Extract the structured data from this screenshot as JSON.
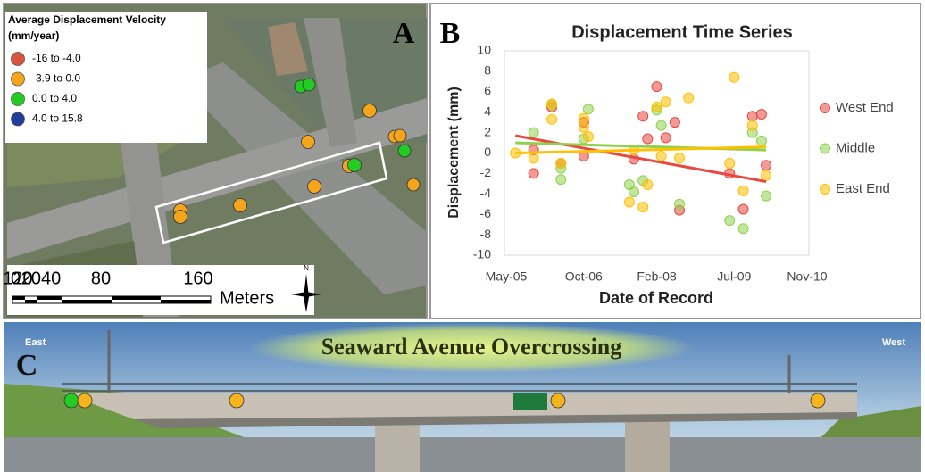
{
  "panel_a": {
    "label": "A",
    "legend": {
      "title_lines": [
        "Average Displacement Velocity",
        "(mm/year)"
      ],
      "items": [
        {
          "label": "-16  to -4.0",
          "color": "#d9553f"
        },
        {
          "label": "-3.9  to  0.0",
          "color": "#f5a51c"
        },
        {
          "label": "0.0  to  4.0",
          "color": "#22cc22"
        },
        {
          "label": "4.0  to  15.8",
          "color": "#1f3f9a"
        }
      ]
    },
    "scale_bar": {
      "labels": [
        "0",
        "2040",
        "80",
        "120",
        "160"
      ],
      "unit": "Meters",
      "north": "N"
    }
  },
  "chart_data": {
    "type": "scatter",
    "label": "B",
    "title": "Displacement Time Series",
    "x_label": "Date of Record",
    "y_label": "Displacement (mm)",
    "xlim": [
      "2005-05",
      "2010-11"
    ],
    "xticks": [
      {
        "value": "2005-05",
        "label": "May-05"
      },
      {
        "value": "2006-10",
        "label": "Oct-06"
      },
      {
        "value": "2008-02",
        "label": "Feb-08"
      },
      {
        "value": "2009-07",
        "label": "Jul-09"
      },
      {
        "value": "2010-11",
        "label": "Nov-10"
      }
    ],
    "ylim": [
      -10,
      10
    ],
    "yticks": [
      -10,
      -8,
      -6,
      -4,
      -2,
      0,
      2,
      4,
      6,
      8,
      10
    ],
    "grid": false,
    "series": [
      {
        "name": "West End",
        "color": "#e8483f",
        "x": [
          "2005-11",
          "2005-11",
          "2006-03",
          "2006-05",
          "2006-10",
          "2006-10",
          "2007-09",
          "2007-11",
          "2007-12",
          "2008-02",
          "2008-04",
          "2008-06",
          "2008-07",
          "2009-06",
          "2009-09",
          "2009-11",
          "2010-01",
          "2010-02"
        ],
        "values": [
          0.3,
          -2.0,
          4.5,
          -1.0,
          3.0,
          -0.3,
          -0.6,
          3.6,
          1.4,
          6.5,
          1.5,
          3.0,
          -5.6,
          -2.0,
          -5.5,
          3.6,
          3.8,
          -1.2
        ],
        "trend": {
          "x": [
            "2005-07",
            "2010-02"
          ],
          "values": [
            1.7,
            -2.8
          ]
        }
      },
      {
        "name": "Middle",
        "color": "#8fd14f",
        "x": [
          "2005-11",
          "2006-03",
          "2006-05",
          "2006-05",
          "2006-10",
          "2006-11",
          "2007-08",
          "2007-09",
          "2007-11",
          "2008-02",
          "2008-03",
          "2008-07",
          "2009-06",
          "2009-09",
          "2009-11",
          "2010-01",
          "2010-02"
        ],
        "values": [
          2.0,
          4.7,
          -2.6,
          -1.5,
          1.4,
          4.3,
          -3.1,
          -3.8,
          -2.7,
          4.2,
          2.7,
          -5.0,
          -6.6,
          -7.4,
          2.0,
          1.2,
          -4.2
        ],
        "trend": {
          "x": [
            "2005-07",
            "2010-02"
          ],
          "values": [
            1.0,
            0.3
          ]
        }
      },
      {
        "name": "East End",
        "color": "#ffc000",
        "x": [
          "2005-07",
          "2005-11",
          "2006-03",
          "2006-03",
          "2006-05",
          "2006-10",
          "2006-11",
          "2006-10",
          "2007-08",
          "2007-09",
          "2007-11",
          "2007-12",
          "2008-02",
          "2008-03",
          "2008-04",
          "2008-07",
          "2008-09",
          "2009-06",
          "2009-07",
          "2009-09",
          "2009-11",
          "2010-02"
        ],
        "values": [
          0.0,
          -0.5,
          3.3,
          4.8,
          -1.0,
          3.4,
          1.6,
          2.5,
          -4.8,
          0.3,
          -5.3,
          -3.1,
          4.5,
          -0.3,
          5.0,
          -0.5,
          5.4,
          -1.0,
          7.4,
          -3.7,
          2.7,
          -2.2
        ],
        "trend": {
          "x": [
            "2005-07",
            "2010-02"
          ],
          "values": [
            0.0,
            0.6
          ]
        }
      }
    ]
  },
  "panel_c": {
    "label": "C",
    "title": "Seaward Avenue Overcrossing",
    "left_direction": "East",
    "right_direction": "West"
  }
}
